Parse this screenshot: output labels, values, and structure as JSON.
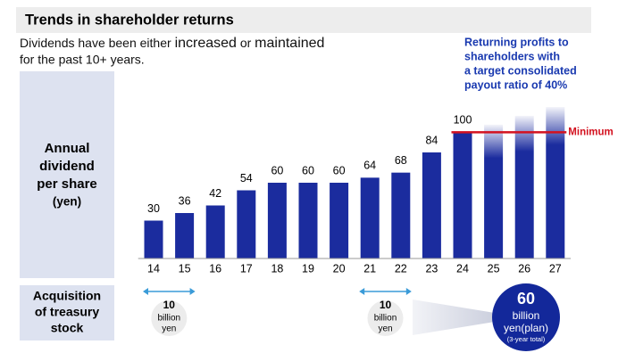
{
  "header": {
    "title": "Trends in shareholder returns"
  },
  "subtitle": {
    "parts": [
      "Dividends have been either ",
      "increased",
      " or ",
      "maintained"
    ],
    "line2": "for the past 10+ years."
  },
  "annotation": {
    "lines": [
      "Returning profits to",
      "shareholders with",
      "a target consolidated",
      "payout ratio of 40%"
    ]
  },
  "panels": {
    "dividend": [
      "Annual",
      "dividend",
      "per share",
      "(yen)"
    ],
    "treasury": [
      "Acquisition",
      "of treasury",
      "stock"
    ]
  },
  "treasury": {
    "items": [
      {
        "amount": 10,
        "unit": [
          "billion",
          "yen"
        ]
      },
      {
        "amount": 10,
        "unit": [
          "billion",
          "yen"
        ]
      }
    ],
    "plan": {
      "amount": 60,
      "unit": "billion",
      "unit2": "yen(plan)",
      "note": "(3-year total)"
    }
  },
  "chart_data": {
    "type": "bar",
    "categories": [
      "14",
      "15",
      "16",
      "17",
      "18",
      "19",
      "20",
      "21",
      "22",
      "23",
      "24",
      "25",
      "26",
      "27"
    ],
    "values": [
      30,
      36,
      42,
      54,
      60,
      60,
      60,
      64,
      68,
      84,
      100,
      106,
      113,
      120
    ],
    "value_labels": [
      "30",
      "36",
      "42",
      "54",
      "60",
      "60",
      "60",
      "64",
      "68",
      "84",
      "100",
      null,
      null,
      null
    ],
    "faded": [
      false,
      false,
      false,
      false,
      false,
      false,
      false,
      false,
      false,
      false,
      false,
      true,
      true,
      true
    ],
    "color": "#1b2c9e",
    "ylim": [
      0,
      120
    ],
    "reference_line": {
      "value": 100,
      "label": "Minimum",
      "color": "#d3111f"
    }
  }
}
